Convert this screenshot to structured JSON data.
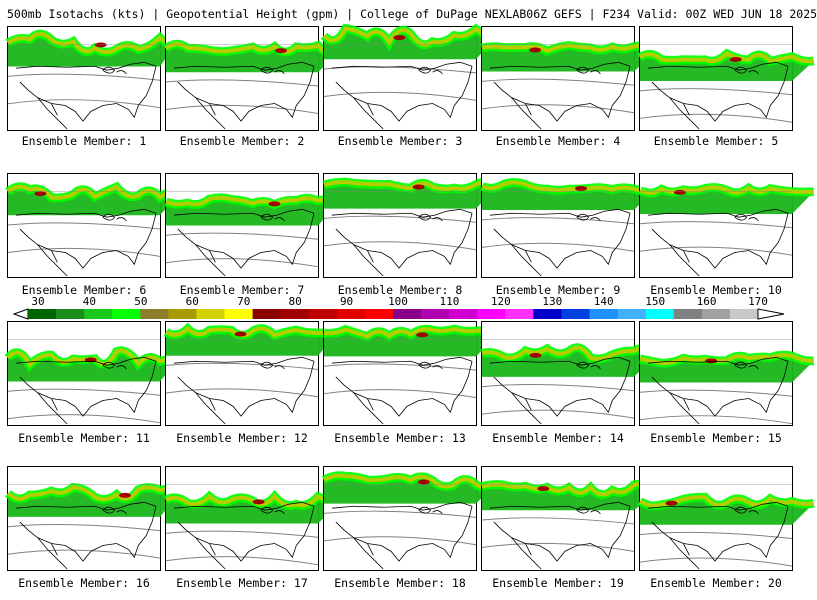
{
  "header": {
    "left": "500mb Isotachs (kts) | Geopotential Height (gpm) | College of DuPage NEXLAB",
    "right": "06Z GEFS | F234 Valid: 00Z WED JUN 18 2025"
  },
  "member_label_prefix": "Ensemble Member: ",
  "members": [
    {
      "number": "1"
    },
    {
      "number": "2"
    },
    {
      "number": "3"
    },
    {
      "number": "4"
    },
    {
      "number": "5"
    },
    {
      "number": "6"
    },
    {
      "number": "7"
    },
    {
      "number": "8"
    },
    {
      "number": "9"
    },
    {
      "number": "10"
    },
    {
      "number": "11"
    },
    {
      "number": "12"
    },
    {
      "number": "13"
    },
    {
      "number": "14"
    },
    {
      "number": "15"
    },
    {
      "number": "16"
    },
    {
      "number": "17"
    },
    {
      "number": "18"
    },
    {
      "number": "19"
    },
    {
      "number": "20"
    }
  ],
  "colorbar": {
    "labels": [
      "30",
      "40",
      "50",
      "60",
      "70",
      "80",
      "90",
      "100",
      "110",
      "120",
      "130",
      "140",
      "150",
      "160",
      "170"
    ],
    "colors": [
      "#006400",
      "#1a8c1a",
      "#19c819",
      "#00ff00",
      "#8b7d2a",
      "#a89a00",
      "#d2d200",
      "#ffff00",
      "#8b0000",
      "#a00000",
      "#c00000",
      "#e00000",
      "#ff0000",
      "#8b008b",
      "#b000b0",
      "#d000d0",
      "#ff00ff",
      "#ff30ff",
      "#0000c8",
      "#0040e0",
      "#1e90ff",
      "#40b0ff",
      "#00ffff",
      "#808080",
      "#a0a0a0",
      "#c8c8c8"
    ]
  },
  "map_colors": {
    "low": "#19b619",
    "mid": "#00ff00",
    "high": "#c8c800",
    "max": "#a00000",
    "coast": "#000000",
    "height_contour": "#808080"
  }
}
